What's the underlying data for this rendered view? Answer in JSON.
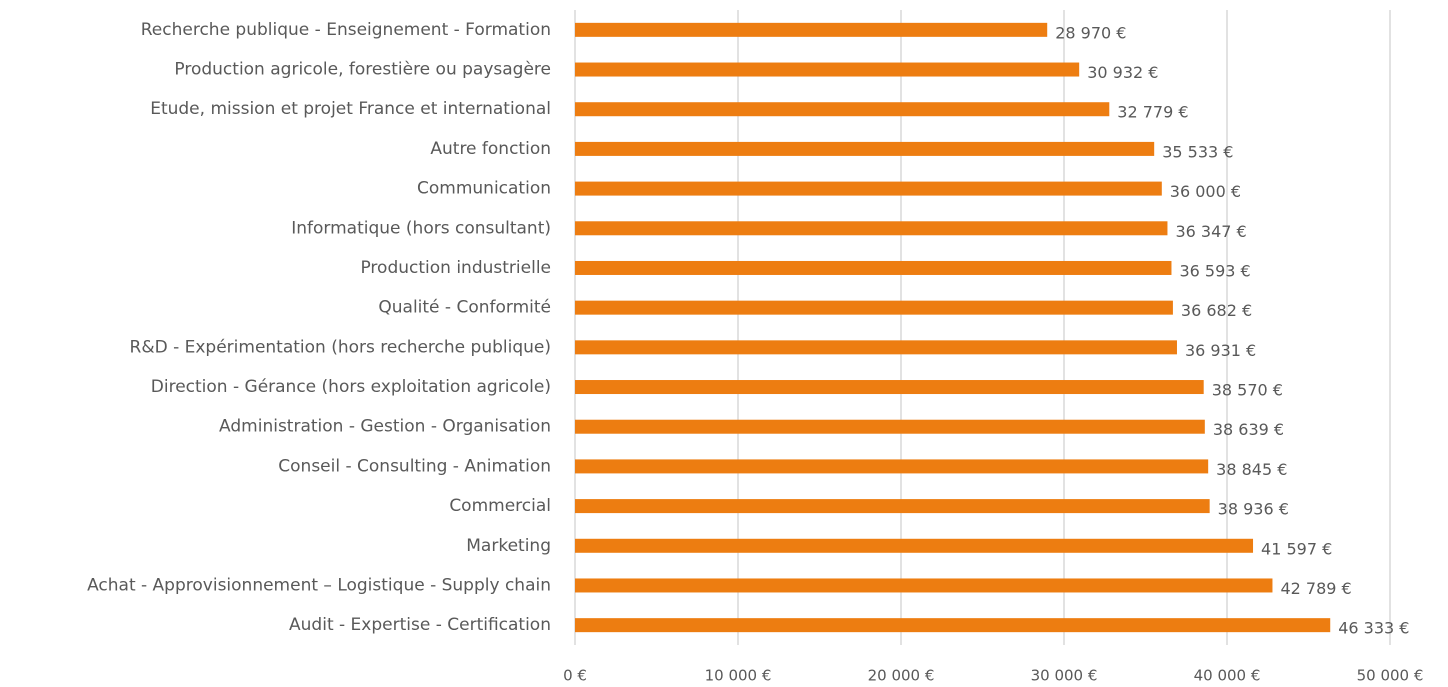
{
  "chart_data": {
    "type": "bar",
    "orientation": "horizontal",
    "categories": [
      "Recherche publique - Enseignement - Formation",
      "Production agricole, forestière ou paysagère",
      "Etude, mission et projet France et international",
      "Autre fonction",
      "Communication",
      "Informatique (hors consultant)",
      "Production industrielle",
      "Qualité - Conformité",
      "R&D - Expérimentation (hors recherche publique)",
      "Direction - Gérance (hors exploitation agricole)",
      "Administration - Gestion - Organisation",
      "Conseil - Consulting - Animation",
      "Commercial",
      "Marketing",
      "Achat - Approvisionnement – Logistique - Supply chain",
      "Audit - Expertise - Certification"
    ],
    "values": [
      28970,
      30932,
      32779,
      35533,
      36000,
      36347,
      36593,
      36682,
      36931,
      38570,
      38639,
      38845,
      38936,
      41597,
      42789,
      46333
    ],
    "value_labels": [
      "28 970 €",
      "30 932 €",
      "32 779 €",
      "35 533 €",
      "36 000 €",
      "36 347 €",
      "36 593 €",
      "36 682 €",
      "36 931 €",
      "38 570 €",
      "38 639 €",
      "38 845 €",
      "38 936 €",
      "41 597 €",
      "42 789 €",
      "46 333 €"
    ],
    "color": "#ed7d11",
    "xlim": [
      0,
      50000
    ],
    "xticks": [
      {
        "value": 0,
        "label": "0 €"
      },
      {
        "value": 10000,
        "label": "10 000 €"
      },
      {
        "value": 20000,
        "label": "20 000 €"
      },
      {
        "value": 30000,
        "label": "30 000 €"
      },
      {
        "value": 40000,
        "label": "40 000 €"
      },
      {
        "value": 50000,
        "label": "50 000 €"
      }
    ],
    "grid": true
  }
}
